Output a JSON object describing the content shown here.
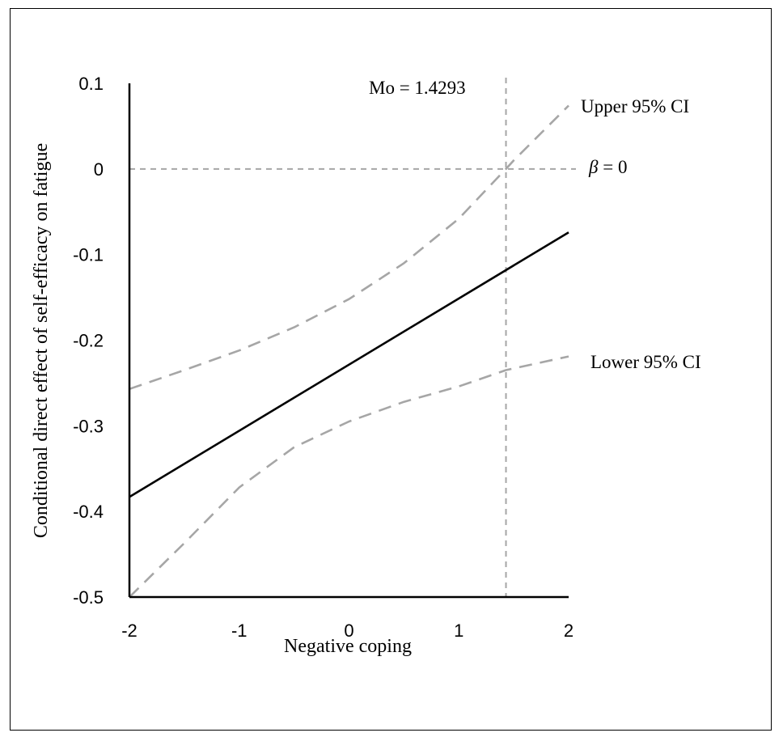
{
  "chart_data": {
    "type": "line",
    "title": "",
    "xlabel": "Negative coping",
    "ylabel": "Conditional direct effect of self-efficacy on fatigue",
    "xlim": [
      -2,
      2
    ],
    "ylim": [
      -0.5,
      0.1
    ],
    "x_ticks": [
      "-2",
      "-1",
      "0",
      "1",
      "2"
    ],
    "y_ticks": [
      "0.1",
      "0",
      "-0.1",
      "-0.2",
      "-0.3",
      "-0.4",
      "-0.5"
    ],
    "grid": false,
    "series": [
      {
        "key": "estimate",
        "style": "solid",
        "color": "#000000",
        "points": [
          [
            -2,
            -0.383
          ],
          [
            2,
            -0.074
          ]
        ]
      },
      {
        "name": "Upper 95% CI",
        "style": "dashed",
        "color": "#a6a6a6",
        "points": [
          [
            -2,
            -0.257
          ],
          [
            -1.5,
            -0.235
          ],
          [
            -1,
            -0.212
          ],
          [
            -0.5,
            -0.185
          ],
          [
            0,
            -0.152
          ],
          [
            0.5,
            -0.11
          ],
          [
            1,
            -0.058
          ],
          [
            1.4293,
            0.0
          ],
          [
            1.5,
            0.01
          ],
          [
            2,
            0.074
          ]
        ]
      },
      {
        "name": "Lower 95% CI",
        "style": "dashed",
        "color": "#a6a6a6",
        "points": [
          [
            -2,
            -0.5
          ],
          [
            -1.5,
            -0.437
          ],
          [
            -1,
            -0.372
          ],
          [
            -0.5,
            -0.325
          ],
          [
            0,
            -0.295
          ],
          [
            0.5,
            -0.272
          ],
          [
            1,
            -0.254
          ],
          [
            1.4293,
            -0.235
          ],
          [
            1.5,
            -0.233
          ],
          [
            2,
            -0.219
          ]
        ]
      }
    ],
    "reference_lines": [
      {
        "axis": "y",
        "value": 0,
        "label": "β = 0",
        "label_symbol": "β",
        "label_rest": " = 0"
      },
      {
        "axis": "x",
        "value": 1.4293,
        "label": "Mo = 1.4293"
      }
    ],
    "colors": {
      "axis": "#000000",
      "ci": "#a6a6a6",
      "reference": "#a6a6a6"
    }
  }
}
